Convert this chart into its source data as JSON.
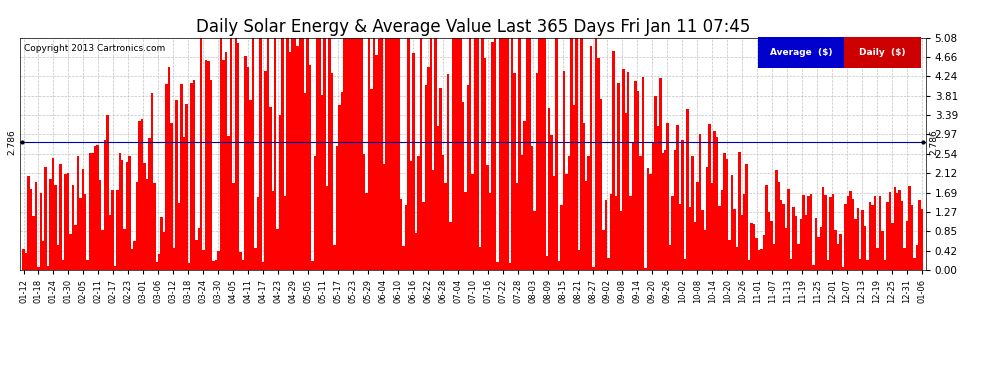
{
  "title": "Daily Solar Energy & Average Value Last 365 Days Fri Jan 11 07:45",
  "copyright": "Copyright 2013 Cartronics.com",
  "average_value": 2.786,
  "average_label": "2.786",
  "y_ticks": [
    0.0,
    0.42,
    0.85,
    1.27,
    1.69,
    2.12,
    2.54,
    2.97,
    3.39,
    3.81,
    4.24,
    4.66,
    5.08
  ],
  "ymax": 5.08,
  "ymin": 0.0,
  "bar_color": "#FF0000",
  "average_line_color": "#0000AA",
  "background_color": "#FFFFFF",
  "grid_color": "#AAAAAA",
  "title_fontsize": 12,
  "legend_avg_bg": "#0000CC",
  "legend_daily_bg": "#CC0000",
  "x_tick_labels": [
    "01-12",
    "01-18",
    "01-24",
    "01-30",
    "02-05",
    "02-11",
    "02-17",
    "02-23",
    "03-01",
    "03-06",
    "03-12",
    "03-18",
    "03-24",
    "03-30",
    "04-05",
    "04-11",
    "04-17",
    "04-23",
    "04-29",
    "05-05",
    "05-11",
    "05-17",
    "05-23",
    "05-29",
    "06-04",
    "06-10",
    "06-16",
    "06-22",
    "06-28",
    "07-04",
    "07-10",
    "07-16",
    "07-22",
    "07-28",
    "08-03",
    "08-09",
    "08-15",
    "08-21",
    "08-27",
    "09-02",
    "09-08",
    "09-14",
    "09-20",
    "09-26",
    "10-02",
    "10-08",
    "10-14",
    "10-20",
    "10-26",
    "11-01",
    "11-07",
    "11-13",
    "11-19",
    "11-25",
    "12-01",
    "12-07",
    "12-13",
    "12-19",
    "12-25",
    "12-31",
    "01-06"
  ],
  "n_bars": 365,
  "seed": 77
}
